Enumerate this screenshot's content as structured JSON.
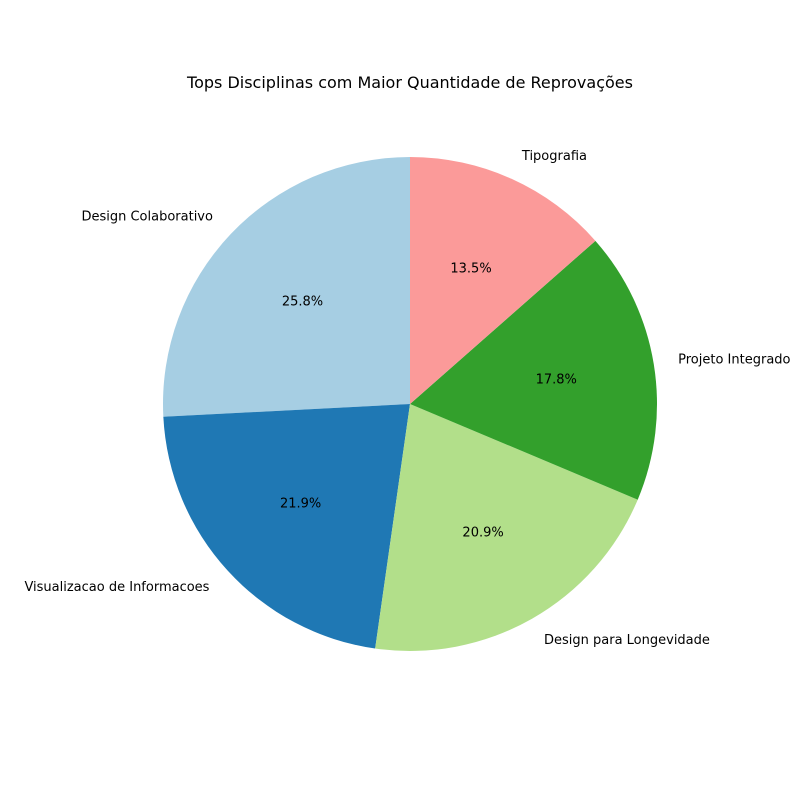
{
  "chart_data": {
    "type": "pie",
    "title": "Tops Disciplinas com Maior Quantidade de Reprovações",
    "start_angle_deg": 90,
    "direction": "counterclockwise",
    "autopct_format": "{:.1f}%",
    "slices": [
      {
        "label": "Design Colaborativo",
        "value": 25.8,
        "pct_label": "25.8%",
        "color": "#a6cee3"
      },
      {
        "label": "Visualizacao de Informacoes",
        "value": 21.9,
        "pct_label": "21.9%",
        "color": "#1f78b4"
      },
      {
        "label": "Design para Longevidade",
        "value": 20.9,
        "pct_label": "20.9%",
        "color": "#b2df8a"
      },
      {
        "label": "Projeto Integrado",
        "value": 17.8,
        "pct_label": "17.8%",
        "color": "#33a02c"
      },
      {
        "label": "Tipografia",
        "value": 13.5,
        "pct_label": "13.5%",
        "color": "#fb9a99"
      }
    ]
  }
}
